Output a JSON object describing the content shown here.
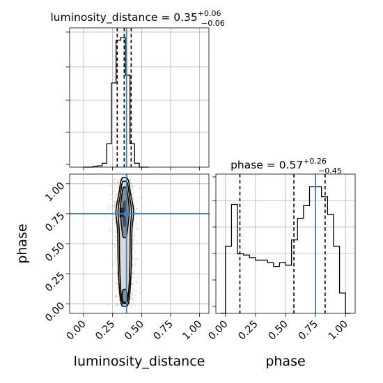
{
  "chart_data": [
    {
      "type": "histogram",
      "panel": "top-left",
      "parameter": "luminosity_distance",
      "title": {
        "label": "luminosity_distance = ",
        "median": "0.35",
        "upper": "+0.06",
        "lower": "−0.06"
      },
      "xlim": [
        -0.12,
        1.08
      ],
      "bin_edges": [
        0.0,
        0.04,
        0.08,
        0.12,
        0.16,
        0.2,
        0.24,
        0.28,
        0.32,
        0.36,
        0.4,
        0.44,
        0.48,
        0.52,
        0.56
      ],
      "counts": [
        0,
        0,
        0.005,
        0.01,
        0.03,
        0.18,
        0.65,
        0.98,
        1.0,
        0.71,
        0.18,
        0.03,
        0.0,
        0
      ],
      "quantiles": [
        0.29,
        0.35,
        0.41
      ],
      "truth": 0.37,
      "grid": true
    },
    {
      "type": "histogram",
      "panel": "bottom-right",
      "parameter": "phase",
      "title": {
        "label": "phase = ",
        "median": "0.57",
        "upper": "+0.26",
        "lower": "−0.45"
      },
      "xlim": [
        -0.08,
        1.08
      ],
      "xlabel": "phase",
      "xticks": [
        "0.00",
        "0.25",
        "0.50",
        "0.75",
        "1.00"
      ],
      "xtick_values": [
        0,
        0.25,
        0.5,
        0.75,
        1.0
      ],
      "bin_edges": [
        -0.04,
        0.0,
        0.05,
        0.1,
        0.15,
        0.2,
        0.25,
        0.3,
        0.35,
        0.4,
        0.45,
        0.5,
        0.55,
        0.6,
        0.65,
        0.7,
        0.75,
        0.8,
        0.85,
        0.9,
        0.95,
        1.0,
        1.04
      ],
      "counts": [
        0,
        0.53,
        0.86,
        0.47,
        0.46,
        0.44,
        0.42,
        0.42,
        0.4,
        0.37,
        0.4,
        0.38,
        0.58,
        0.75,
        0.85,
        1.0,
        1.0,
        0.92,
        0.78,
        0.53,
        0.16,
        0
      ],
      "quantiles": [
        0.12,
        0.57,
        0.83
      ],
      "truth": 0.75,
      "grid": true
    },
    {
      "type": "2d_density",
      "panel": "bottom-left",
      "x_param": "luminosity_distance",
      "y_param": "phase",
      "xlim": [
        -0.12,
        1.08
      ],
      "ylim": [
        -0.08,
        1.08
      ],
      "xlabel": "luminosity_distance",
      "ylabel": "phase",
      "xticks": [
        "0.00",
        "0.25",
        "0.50",
        "0.75",
        "1.00"
      ],
      "xtick_values": [
        0,
        0.25,
        0.5,
        0.75,
        1.0
      ],
      "yticks": [
        "0.00",
        "0.25",
        "0.50",
        "0.75",
        "1.00"
      ],
      "ytick_values": [
        0,
        0.25,
        0.5,
        0.75,
        1.0
      ],
      "truth": [
        0.37,
        0.75
      ],
      "center": [
        0.35,
        0.55
      ],
      "grid": true
    }
  ]
}
